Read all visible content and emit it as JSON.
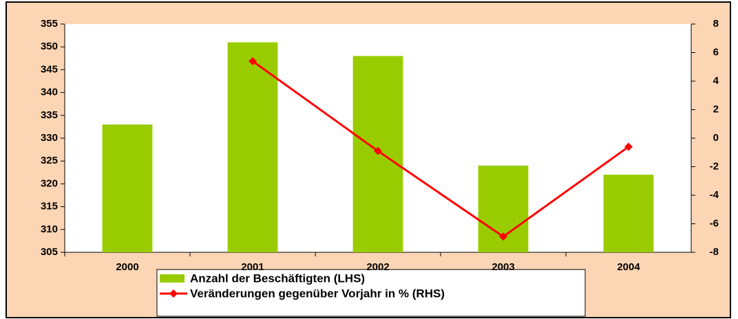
{
  "chart_data": {
    "type": "bar",
    "categories": [
      "2000",
      "2001",
      "2002",
      "2003",
      "2004"
    ],
    "series": [
      {
        "name": "Anzahl der Beschäftigten (LHS)",
        "type": "bar",
        "color": "#99cc00",
        "values": [
          333,
          351,
          348,
          324,
          322
        ]
      },
      {
        "name": "Veränderungen gegenüber Vorjahr in % (RHS)",
        "type": "line",
        "axis": "y2",
        "color": "#ff0000",
        "values": [
          null,
          5.4,
          -0.9,
          -6.9,
          -0.6
        ]
      }
    ],
    "ylim": [
      305,
      355
    ],
    "yticks": [
      305,
      310,
      315,
      320,
      325,
      330,
      335,
      340,
      345,
      350,
      355
    ],
    "y2lim": [
      -8,
      8
    ],
    "y2ticks": [
      -8,
      -6,
      -4,
      -2,
      0,
      2,
      4,
      6,
      8
    ],
    "background": "#fcd5b4",
    "legend": "bottom"
  }
}
